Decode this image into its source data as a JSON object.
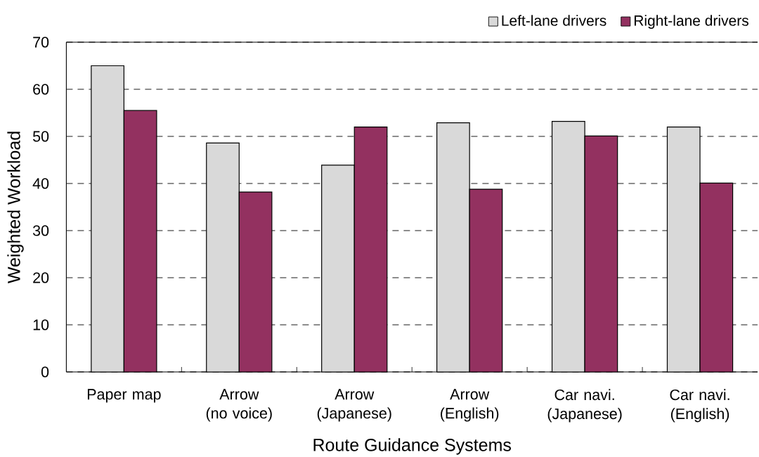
{
  "chart_data": {
    "type": "bar",
    "categories": [
      "Paper map",
      "Arrow\n(no voice)",
      "Arrow\n(Japanese)",
      "Arrow\n(English)",
      "Car navi.\n(Japanese)",
      "Car navi.\n(English)"
    ],
    "series": [
      {
        "name": "Left-lane drivers",
        "color": "#d9d9d9",
        "values": [
          65.0,
          48.6,
          43.9,
          52.9,
          53.2,
          52.0
        ]
      },
      {
        "name": "Right-lane drivers",
        "color": "#933160",
        "values": [
          55.5,
          38.2,
          52.0,
          38.8,
          50.1,
          40.1
        ]
      }
    ],
    "xlabel": "Route Guidance Systems",
    "ylabel": "Weighted Workload",
    "ylim": [
      0,
      70
    ],
    "yticks": [
      0,
      10,
      20,
      30,
      40,
      50,
      60,
      70
    ],
    "grid": "y",
    "legend": "top right"
  }
}
